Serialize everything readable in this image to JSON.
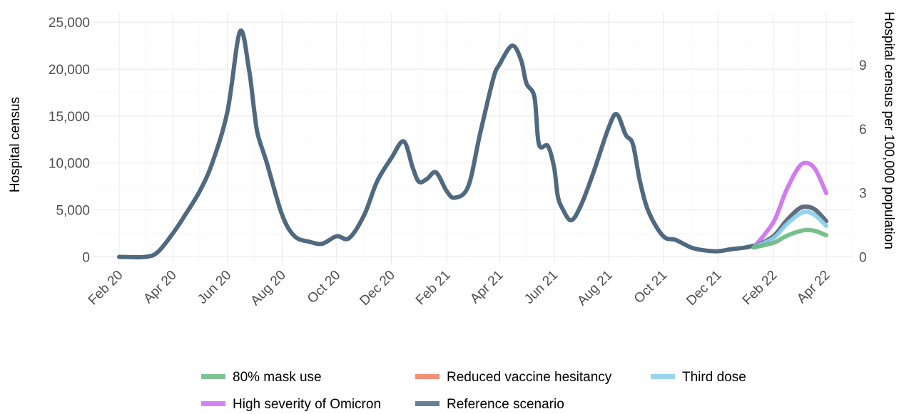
{
  "chart_data": {
    "type": "line",
    "title": "",
    "xlabel": "",
    "ylabel": "Hospital census",
    "y2label": "Hospital census per 100,000 population",
    "x_ticks": [
      "Feb 20",
      "Apr 20",
      "Jun 20",
      "Aug 20",
      "Oct 20",
      "Dec 20",
      "Feb 21",
      "Apr 21",
      "Jun 21",
      "Aug 21",
      "Oct 21",
      "Dec 21",
      "Feb 22",
      "Apr 22"
    ],
    "y_ticks": [
      0,
      5000,
      10000,
      15000,
      20000,
      25000
    ],
    "y_tick_labels": [
      "0",
      "5,000",
      "10,000",
      "15,000",
      "20,000",
      "25,000"
    ],
    "y2_ticks": [
      0,
      3,
      6,
      9
    ],
    "y2_tick_labels": [
      "0",
      "3",
      "6",
      "9"
    ],
    "ylim": [
      -800,
      26000
    ],
    "grid": true,
    "legend_position": "bottom",
    "historical": {
      "x": [
        "2020-02-01",
        "2020-03-01",
        "2020-03-15",
        "2020-04-01",
        "2020-04-15",
        "2020-05-01",
        "2020-05-15",
        "2020-06-01",
        "2020-06-15",
        "2020-06-25",
        "2020-07-01",
        "2020-07-05",
        "2020-07-15",
        "2020-08-01",
        "2020-08-15",
        "2020-09-01",
        "2020-09-15",
        "2020-10-01",
        "2020-10-15",
        "2020-11-01",
        "2020-11-15",
        "2020-12-01",
        "2020-12-15",
        "2020-12-25",
        "2021-01-01",
        "2021-01-10",
        "2021-01-20",
        "2021-02-01",
        "2021-02-10",
        "2021-02-25",
        "2021-03-10",
        "2021-03-25",
        "2021-04-01",
        "2021-04-15",
        "2021-04-25",
        "2021-05-01",
        "2021-05-10",
        "2021-05-15",
        "2021-05-25",
        "2021-06-01",
        "2021-06-05",
        "2021-06-10",
        "2021-06-20",
        "2021-07-01",
        "2021-07-15",
        "2021-08-01",
        "2021-08-10",
        "2021-08-20",
        "2021-08-28",
        "2021-09-05",
        "2021-09-15",
        "2021-10-01",
        "2021-10-15",
        "2021-11-01",
        "2021-11-15",
        "2021-12-01",
        "2021-12-15",
        "2022-01-01",
        "2022-01-10"
      ],
      "y": [
        0,
        0,
        500,
        2500,
        4500,
        7000,
        10000,
        15500,
        24000,
        20000,
        15500,
        13000,
        10000,
        4500,
        2200,
        1600,
        1400,
        2200,
        2000,
        4500,
        8000,
        10500,
        12300,
        9500,
        8000,
        8300,
        9000,
        7000,
        6300,
        7500,
        13000,
        19000,
        20500,
        22500,
        21000,
        18500,
        17000,
        12000,
        11800,
        9500,
        6500,
        5200,
        3900,
        5500,
        9000,
        13800,
        15200,
        13000,
        12000,
        8000,
        4700,
        2200,
        1800,
        1000,
        700,
        600,
        800,
        1000,
        1200
      ]
    },
    "series": [
      {
        "name": "80% mask use",
        "color": "#6ab880",
        "x": [
          "2022-01-10",
          "2022-02-01",
          "2022-02-15",
          "2022-03-01",
          "2022-03-10",
          "2022-03-20",
          "2022-04-01"
        ],
        "y": [
          1000,
          1500,
          2200,
          2700,
          2850,
          2750,
          2300
        ]
      },
      {
        "name": "Reduced vaccine hesitancy",
        "color": "#f07e5e",
        "x": [
          "2022-01-10",
          "2022-02-01",
          "2022-02-15",
          "2022-03-01",
          "2022-03-10",
          "2022-03-20",
          "2022-04-01"
        ],
        "y": [
          1000,
          2200,
          3800,
          5100,
          5350,
          5000,
          3800
        ]
      },
      {
        "name": "Third dose",
        "color": "#87ceeb",
        "x": [
          "2022-01-10",
          "2022-02-01",
          "2022-02-15",
          "2022-03-01",
          "2022-03-10",
          "2022-03-20",
          "2022-04-01"
        ],
        "y": [
          1000,
          2000,
          3400,
          4500,
          4800,
          4400,
          3300
        ]
      },
      {
        "name": "High severity of Omicron",
        "color": "#cc6ff0",
        "x": [
          "2022-01-10",
          "2022-02-01",
          "2022-02-15",
          "2022-03-01",
          "2022-03-10",
          "2022-03-20",
          "2022-04-01"
        ],
        "y": [
          1000,
          3700,
          7000,
          9500,
          10000,
          9300,
          6800
        ]
      },
      {
        "name": "Reference scenario",
        "color": "#4f6a80",
        "x": [
          "2022-01-10",
          "2022-02-01",
          "2022-02-15",
          "2022-03-01",
          "2022-03-10",
          "2022-03-20",
          "2022-04-01"
        ],
        "y": [
          1000,
          2200,
          3800,
          5100,
          5350,
          5000,
          3800
        ]
      }
    ]
  }
}
